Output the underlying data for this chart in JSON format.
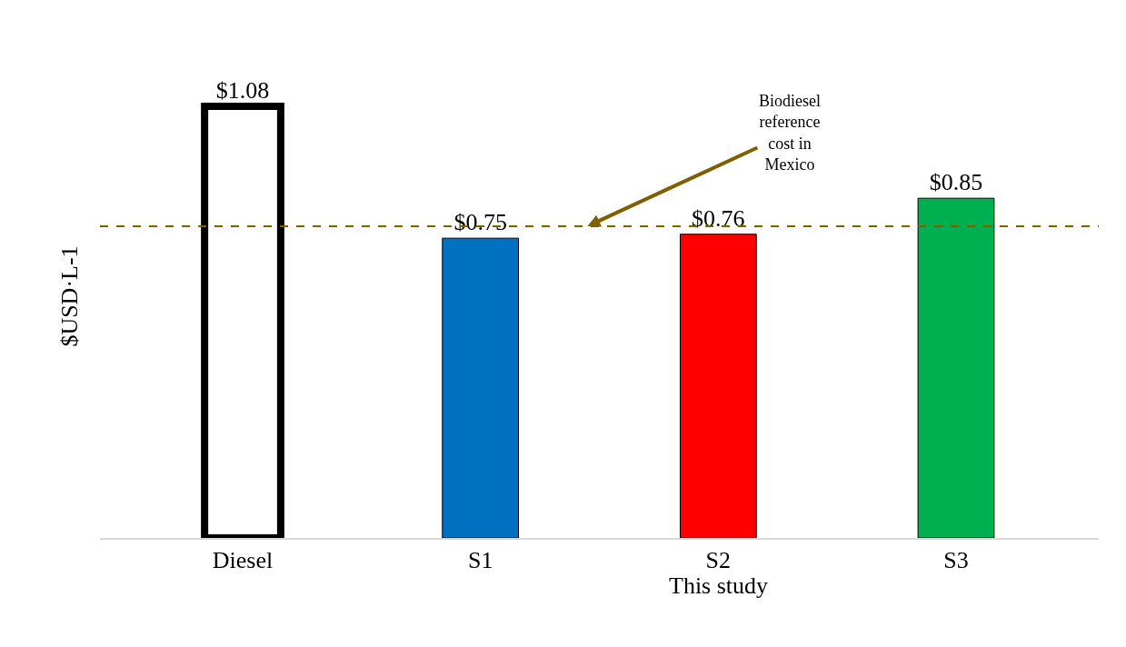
{
  "chart_data": {
    "type": "bar",
    "ylabel": "$USD·L-1",
    "categories": [
      "Diesel",
      "S1",
      "S2",
      "S3"
    ],
    "values": [
      1.08,
      0.75,
      0.76,
      0.85
    ],
    "colors": [
      "#ffffff",
      "#0070c0",
      "#ff0000",
      "#00b050"
    ],
    "value_labels": [
      "$1.08",
      "$0.75",
      "$0.76",
      "$0.85"
    ],
    "tick_labels": "x",
    "ref_lines": [
      {
        "axis": "y",
        "value": 0.78,
        "label": "Biodiesel reference cost in Mexico",
        "color": "#7f6000",
        "line_style": "dashed"
      }
    ],
    "annotations": [
      "This study"
    ],
    "legend": false
  }
}
